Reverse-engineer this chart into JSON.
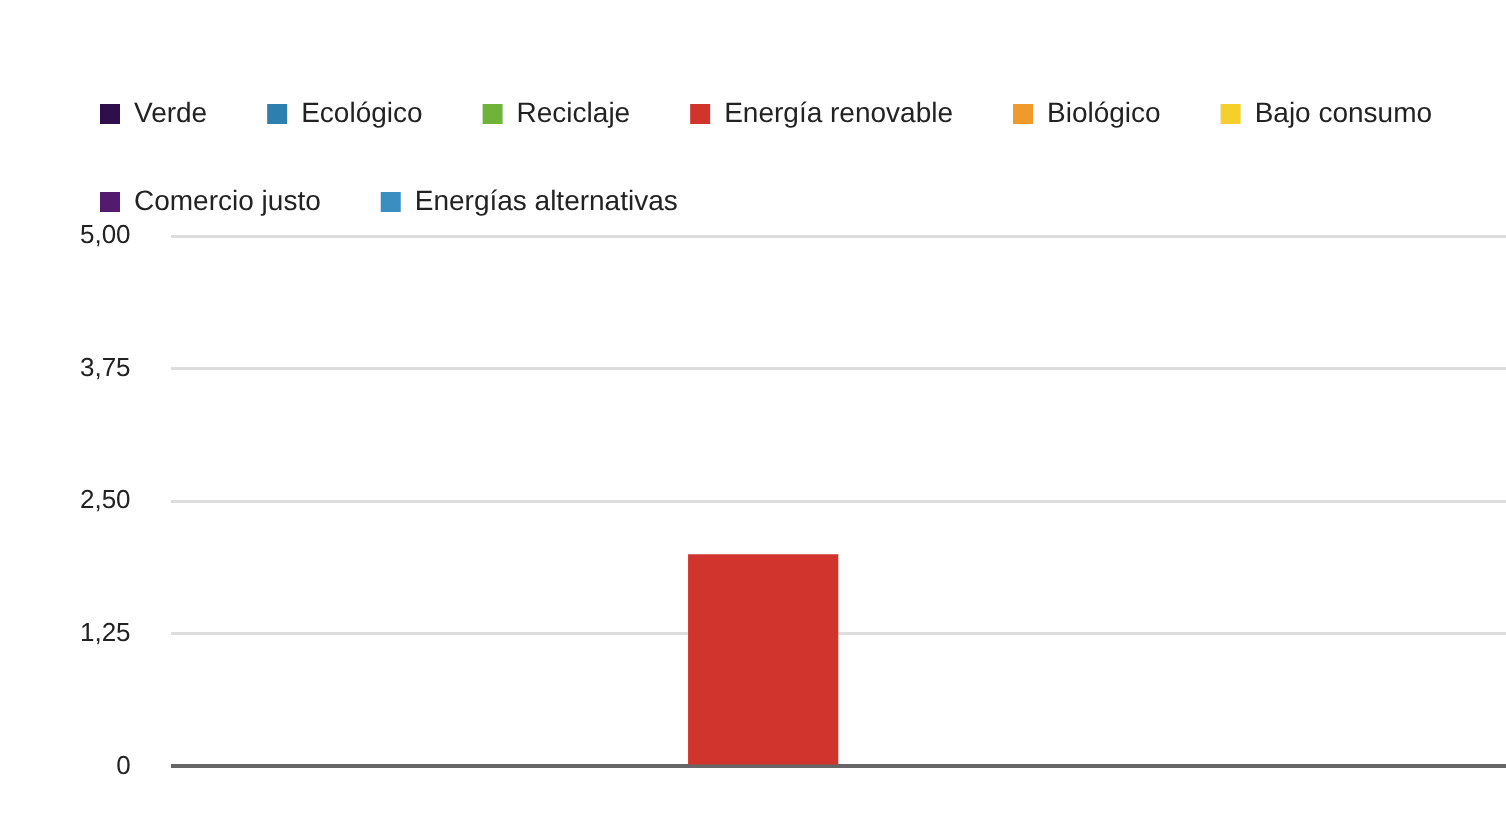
{
  "chart_data": {
    "type": "bar",
    "categories": [
      null
    ],
    "series": [
      {
        "name": "Verde",
        "color": "#2e0f4a",
        "values": [
          0
        ]
      },
      {
        "name": "Ecológico",
        "color": "#2d7fb0",
        "values": [
          0
        ]
      },
      {
        "name": "Reciclaje",
        "color": "#6fb33b",
        "values": [
          0
        ]
      },
      {
        "name": "Energía renovable",
        "color": "#d0342c",
        "values": [
          2
        ]
      },
      {
        "name": "Biológico",
        "color": "#ef9a2a",
        "values": [
          0
        ]
      },
      {
        "name": "Bajo consumo",
        "color": "#f5cf2c",
        "values": [
          0
        ]
      },
      {
        "name": "Comercio justo",
        "color": "#531a6e",
        "values": [
          0
        ]
      },
      {
        "name": "Energías alternativas",
        "color": "#3a8fc0",
        "values": [
          0
        ]
      }
    ],
    "ylim": [
      0,
      5
    ],
    "yticks": [
      {
        "value": 0,
        "label": "0"
      },
      {
        "value": 1.25,
        "label": "1,25"
      },
      {
        "value": 2.5,
        "label": "2,50"
      },
      {
        "value": 3.75,
        "label": "3,75"
      },
      {
        "value": 5,
        "label": "5,00"
      }
    ],
    "grid": "y",
    "legend": "top"
  }
}
